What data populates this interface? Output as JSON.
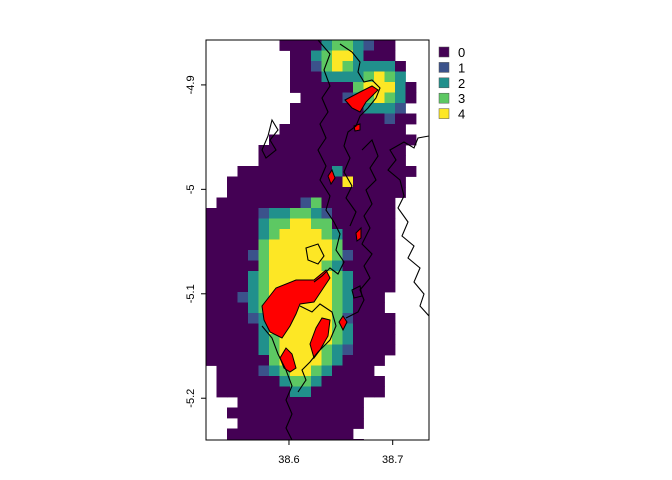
{
  "map": {
    "x_axis": {
      "range": [
        38.52,
        38.735
      ],
      "ticks": [
        {
          "value": 38.6,
          "label": "38.6"
        },
        {
          "value": 38.7,
          "label": "38.7"
        }
      ]
    },
    "y_axis": {
      "range": [
        -5.24,
        -4.857
      ],
      "ticks": [
        {
          "value": -4.9,
          "label": "-4.9"
        },
        {
          "value": -5.0,
          "label": "-5"
        },
        {
          "value": -5.1,
          "label": "-5.1"
        },
        {
          "value": -5.2,
          "label": "-5.2"
        }
      ]
    },
    "legend": {
      "placement": "top-right",
      "items": [
        {
          "label": "0",
          "color": "#440154"
        },
        {
          "label": "1",
          "color": "#3b528b"
        },
        {
          "label": "2",
          "color": "#21908c"
        },
        {
          "label": "3",
          "color": "#5dc863"
        },
        {
          "label": "4",
          "color": "#fde725"
        }
      ]
    },
    "highlight_color": "#ff0000",
    "coastline_color": "#000000"
  }
}
